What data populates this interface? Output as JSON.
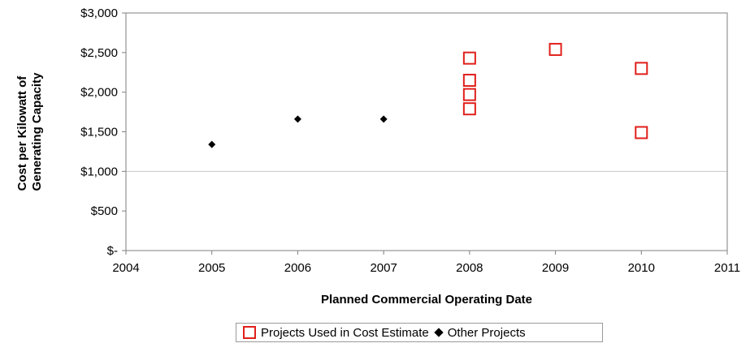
{
  "chart_data": {
    "type": "scatter",
    "title": "",
    "xlabel": "Planned Commercial Operating Date",
    "ylabel": [
      "Cost per Kilowatt of",
      "Generating Capacity"
    ],
    "xlim": [
      2004,
      2011
    ],
    "ylim": [
      0,
      3000
    ],
    "x_ticks": [
      "2004",
      "2005",
      "2006",
      "2007",
      "2008",
      "2009",
      "2010",
      "2011"
    ],
    "y_ticks": [
      "$-",
      "$500",
      "$1,000",
      "$1,500",
      "$2,000",
      "$2,500",
      "$3,000"
    ],
    "grid": "horizontal line at $1,000",
    "series": [
      {
        "name": "Projects Used in Cost Estimate",
        "marker": "open-square",
        "color": "#e0201b",
        "points": [
          [
            2008,
            2430
          ],
          [
            2008,
            2150
          ],
          [
            2008,
            1970
          ],
          [
            2008,
            1790
          ],
          [
            2009,
            2540
          ],
          [
            2010,
            2300
          ],
          [
            2010,
            1490
          ]
        ]
      },
      {
        "name": "Other Projects",
        "marker": "filled-diamond",
        "color": "#000000",
        "points": [
          [
            2005,
            1340
          ],
          [
            2006,
            1660
          ],
          [
            2007,
            1660
          ]
        ]
      }
    ],
    "legend_position": "bottom"
  }
}
